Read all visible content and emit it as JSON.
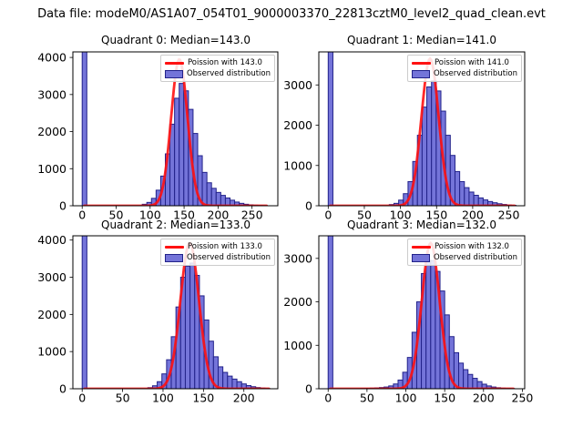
{
  "title": "Data file: modeM0/AS1A07_054T01_9000003370_22813cztM0_level2_quad_clean.evt",
  "colors": {
    "bar_fill": "#7474d9",
    "bar_edge": "#22228a",
    "curve": "#ff1111",
    "axes": "#000000",
    "text": "#000000",
    "legend_border": "#cccccc",
    "background": "#ffffff"
  },
  "chart_data": {
    "type": "bar",
    "subtype": "histogram_with_poisson_fit",
    "figure_title": "Data file: modeM0/AS1A07_054T01_9000003370_22813cztM0_level2_quad_clean.evt",
    "subplots": [
      {
        "title": "Quadrant 0: Median=143.0",
        "median": 143.0,
        "legend_line": "Poission with 143.0",
        "legend_patch": "Observed distribution",
        "x_ticks": [
          0,
          50,
          100,
          150,
          200,
          250
        ],
        "y_ticks": [
          0,
          1000,
          2000,
          3000,
          4000
        ],
        "xlim": [
          -13.7,
          288
        ],
        "ylim": [
          0,
          4150
        ],
        "bin_width": 6.8,
        "bars": [
          [
            0,
            18000
          ],
          [
            88.4,
            40
          ],
          [
            95.2,
            90
          ],
          [
            102,
            200
          ],
          [
            108.8,
            420
          ],
          [
            115.6,
            800
          ],
          [
            122.4,
            1400
          ],
          [
            129.2,
            2200
          ],
          [
            136,
            2900
          ],
          [
            142.8,
            3300
          ],
          [
            149.6,
            3100
          ],
          [
            156.4,
            2600
          ],
          [
            163.2,
            1950
          ],
          [
            170,
            1350
          ],
          [
            176.8,
            900
          ],
          [
            183.6,
            620
          ],
          [
            190.4,
            470
          ],
          [
            197.2,
            360
          ],
          [
            204,
            280
          ],
          [
            210.8,
            210
          ],
          [
            217.6,
            150
          ],
          [
            224.4,
            100
          ],
          [
            231.2,
            65
          ],
          [
            238,
            40
          ],
          [
            244.8,
            25
          ],
          [
            251.6,
            15
          ],
          [
            258.4,
            8
          ],
          [
            265.2,
            4
          ]
        ],
        "curve": {
          "center": 143,
          "sigma": 12,
          "peak": 3950,
          "x_start": 3,
          "x_end": 272
        }
      },
      {
        "title": "Quadrant 1: Median=141.0",
        "median": 141.0,
        "legend_line": "Poission with 141.0",
        "legend_patch": "Observed distribution",
        "x_ticks": [
          0,
          50,
          100,
          150,
          200,
          250
        ],
        "y_ticks": [
          0,
          1000,
          2000,
          3000
        ],
        "xlim": [
          -13,
          272
        ],
        "ylim": [
          0,
          3820
        ],
        "bin_width": 6.5,
        "bars": [
          [
            0,
            18000
          ],
          [
            84.5,
            30
          ],
          [
            91,
            60
          ],
          [
            97.5,
            140
          ],
          [
            104,
            300
          ],
          [
            110.5,
            600
          ],
          [
            117,
            1100
          ],
          [
            123.5,
            1750
          ],
          [
            130,
            2450
          ],
          [
            136.5,
            2950
          ],
          [
            143,
            3100
          ],
          [
            149.5,
            2850
          ],
          [
            156,
            2350
          ],
          [
            162.5,
            1750
          ],
          [
            169,
            1250
          ],
          [
            175.5,
            850
          ],
          [
            182,
            600
          ],
          [
            188.5,
            450
          ],
          [
            195,
            340
          ],
          [
            201.5,
            260
          ],
          [
            208,
            195
          ],
          [
            214.5,
            145
          ],
          [
            221,
            105
          ],
          [
            227.5,
            75
          ],
          [
            234,
            50
          ],
          [
            240.5,
            32
          ],
          [
            247,
            18
          ],
          [
            253.5,
            10
          ]
        ],
        "curve": {
          "center": 141,
          "sigma": 11.9,
          "peak": 3650,
          "x_start": 3,
          "x_end": 258
        }
      },
      {
        "title": "Quadrant 2: Median=133.0",
        "median": 133.0,
        "legend_line": "Poission with 133.0",
        "legend_patch": "Observed distribution",
        "x_ticks": [
          0,
          50,
          100,
          150,
          200
        ],
        "y_ticks": [
          0,
          1000,
          2000,
          3000,
          4000
        ],
        "xlim": [
          -11.5,
          242
        ],
        "ylim": [
          0,
          4115
        ],
        "bin_width": 5.8,
        "bars": [
          [
            0,
            18000
          ],
          [
            81.2,
            30
          ],
          [
            87,
            80
          ],
          [
            92.8,
            190
          ],
          [
            98.6,
            400
          ],
          [
            104.4,
            780
          ],
          [
            110.2,
            1400
          ],
          [
            116,
            2200
          ],
          [
            121.8,
            3000
          ],
          [
            127.6,
            3300
          ],
          [
            133.4,
            3380
          ],
          [
            139.2,
            3050
          ],
          [
            145,
            2500
          ],
          [
            150.8,
            1850
          ],
          [
            156.6,
            1280
          ],
          [
            162.4,
            860
          ],
          [
            168.2,
            590
          ],
          [
            174,
            440
          ],
          [
            179.8,
            340
          ],
          [
            185.6,
            260
          ],
          [
            191.4,
            190
          ],
          [
            197.2,
            130
          ],
          [
            203,
            85
          ],
          [
            208.8,
            55
          ],
          [
            214.6,
            32
          ],
          [
            220.4,
            18
          ],
          [
            226.2,
            8
          ]
        ],
        "curve": {
          "center": 133,
          "sigma": 11.5,
          "peak": 3920,
          "x_start": 3,
          "x_end": 231
        }
      },
      {
        "title": "Quadrant 3: Median=132.0",
        "median": 132.0,
        "legend_line": "Poission with 132.0",
        "legend_patch": "Observed distribution",
        "x_ticks": [
          0,
          50,
          100,
          150,
          200,
          250
        ],
        "y_ticks": [
          0,
          1000,
          2000,
          3000
        ],
        "xlim": [
          -12,
          253
        ],
        "ylim": [
          0,
          3520
        ],
        "bin_width": 6.0,
        "bars": [
          [
            0,
            18000
          ],
          [
            42,
            8
          ],
          [
            48,
            10
          ],
          [
            54,
            14
          ],
          [
            60,
            20
          ],
          [
            66,
            28
          ],
          [
            72,
            40
          ],
          [
            78,
            65
          ],
          [
            84,
            110
          ],
          [
            90,
            200
          ],
          [
            96,
            380
          ],
          [
            102,
            720
          ],
          [
            108,
            1300
          ],
          [
            114,
            2000
          ],
          [
            120,
            2650
          ],
          [
            126,
            2950
          ],
          [
            132,
            2950
          ],
          [
            138,
            2700
          ],
          [
            144,
            2250
          ],
          [
            150,
            1700
          ],
          [
            156,
            1200
          ],
          [
            162,
            830
          ],
          [
            168,
            590
          ],
          [
            174,
            440
          ],
          [
            180,
            330
          ],
          [
            186,
            240
          ],
          [
            192,
            165
          ],
          [
            198,
            105
          ],
          [
            204,
            65
          ],
          [
            210,
            40
          ],
          [
            216,
            24
          ],
          [
            222,
            14
          ],
          [
            228,
            8
          ],
          [
            234,
            4
          ]
        ],
        "curve": {
          "center": 132,
          "sigma": 11.5,
          "peak": 3350,
          "x_start": 3,
          "x_end": 239
        }
      }
    ]
  }
}
